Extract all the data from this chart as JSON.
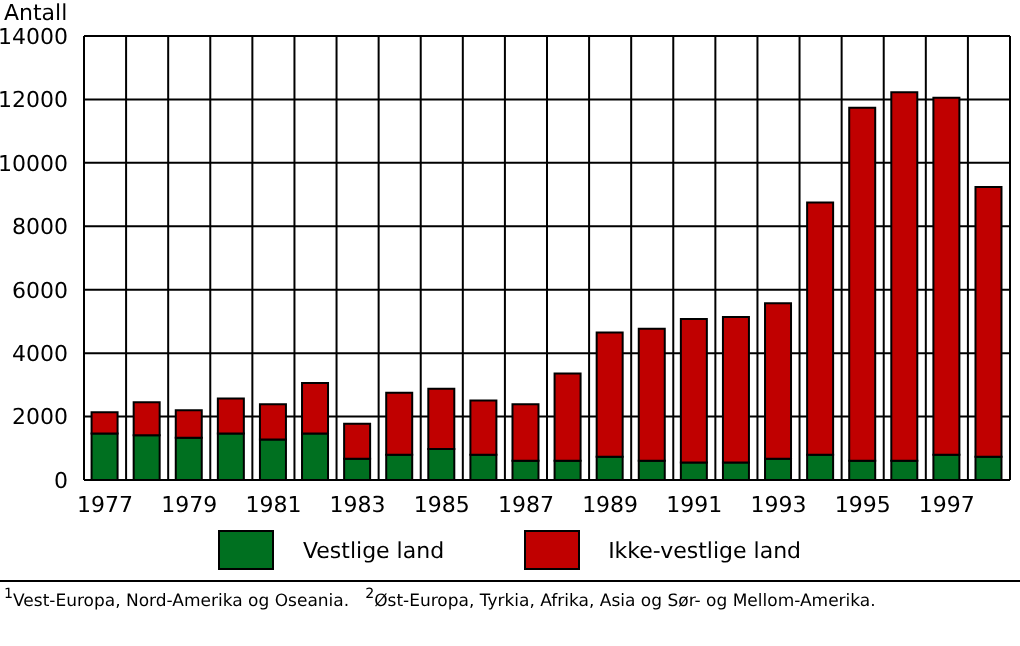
{
  "chart_data": {
    "type": "bar",
    "stacked": true,
    "ylabel": "Antall",
    "categories": [
      "1977",
      null,
      "1979",
      null,
      "1981",
      null,
      "1983",
      null,
      "1985",
      null,
      "1987",
      null,
      "1989",
      null,
      "1991",
      null,
      "1993",
      null,
      "1995",
      null,
      "1997",
      null
    ],
    "series": [
      {
        "name": "Vestlige land",
        "color": "#007020",
        "values": [
          1470,
          1410,
          1330,
          1470,
          1280,
          1470,
          670,
          800,
          980,
          800,
          610,
          610,
          730,
          610,
          550,
          550,
          670,
          800,
          610,
          610,
          800,
          730
        ]
      },
      {
        "name": "Ikke-vestlige land",
        "color": "#c00000",
        "values": [
          670,
          1040,
          870,
          1100,
          1110,
          1590,
          1100,
          1950,
          1900,
          1710,
          1780,
          2750,
          3920,
          4160,
          4530,
          4590,
          4900,
          7950,
          11130,
          11620,
          11250,
          8510
        ]
      }
    ],
    "ylim": [
      0,
      14000
    ],
    "yticks": [
      0,
      2000,
      4000,
      6000,
      8000,
      10000,
      12000,
      14000
    ],
    "grid": true,
    "legend": "bottom",
    "annotations": [
      "$^{1}$Vest-Europa, Nord-Amerika og Oseania.",
      "$^{2}$Øst-Europa, Tyrkia, Afrika, Asia og Sør- og Mellom-Amerika."
    ]
  }
}
